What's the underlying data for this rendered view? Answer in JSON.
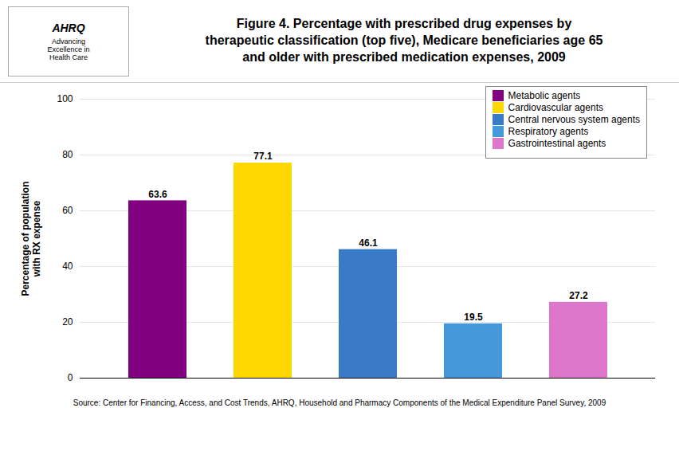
{
  "chart_data": {
    "type": "bar",
    "title": "Figure 4. Percentage with prescribed drug expenses by\ntherapeutic classification (top five), Medicare beneficiaries age 65\nand older with prescribed medication expenses, 2009",
    "categories": [
      "Metabolic agents",
      "Cardiovascular agents",
      "Central nervous system agents",
      "Respiratory agents",
      "Gastrointestinal agents"
    ],
    "values": [
      63.6,
      77.1,
      46.1,
      19.5,
      27.2
    ],
    "colors": [
      "#800080",
      "#FFD700",
      "#3a7bc8",
      "#4499dd",
      "#dd77cc"
    ],
    "ylabel": "Percentage of population\nwith RX expense",
    "ylim": [
      0,
      100
    ],
    "yticks": [
      0,
      20,
      40,
      60,
      80,
      100
    ],
    "grid": true,
    "data_labels": true,
    "tick_labels": "y",
    "legend": "upper right",
    "annotations": [
      "AHRQ",
      "Advancing\nExcellence in\nHealth Care",
      "Source: Center for Financing, Access, and Cost Trends, AHRQ, Household and Pharmacy Components of the Medical Expenditure Panel Survey,  2009"
    ]
  }
}
